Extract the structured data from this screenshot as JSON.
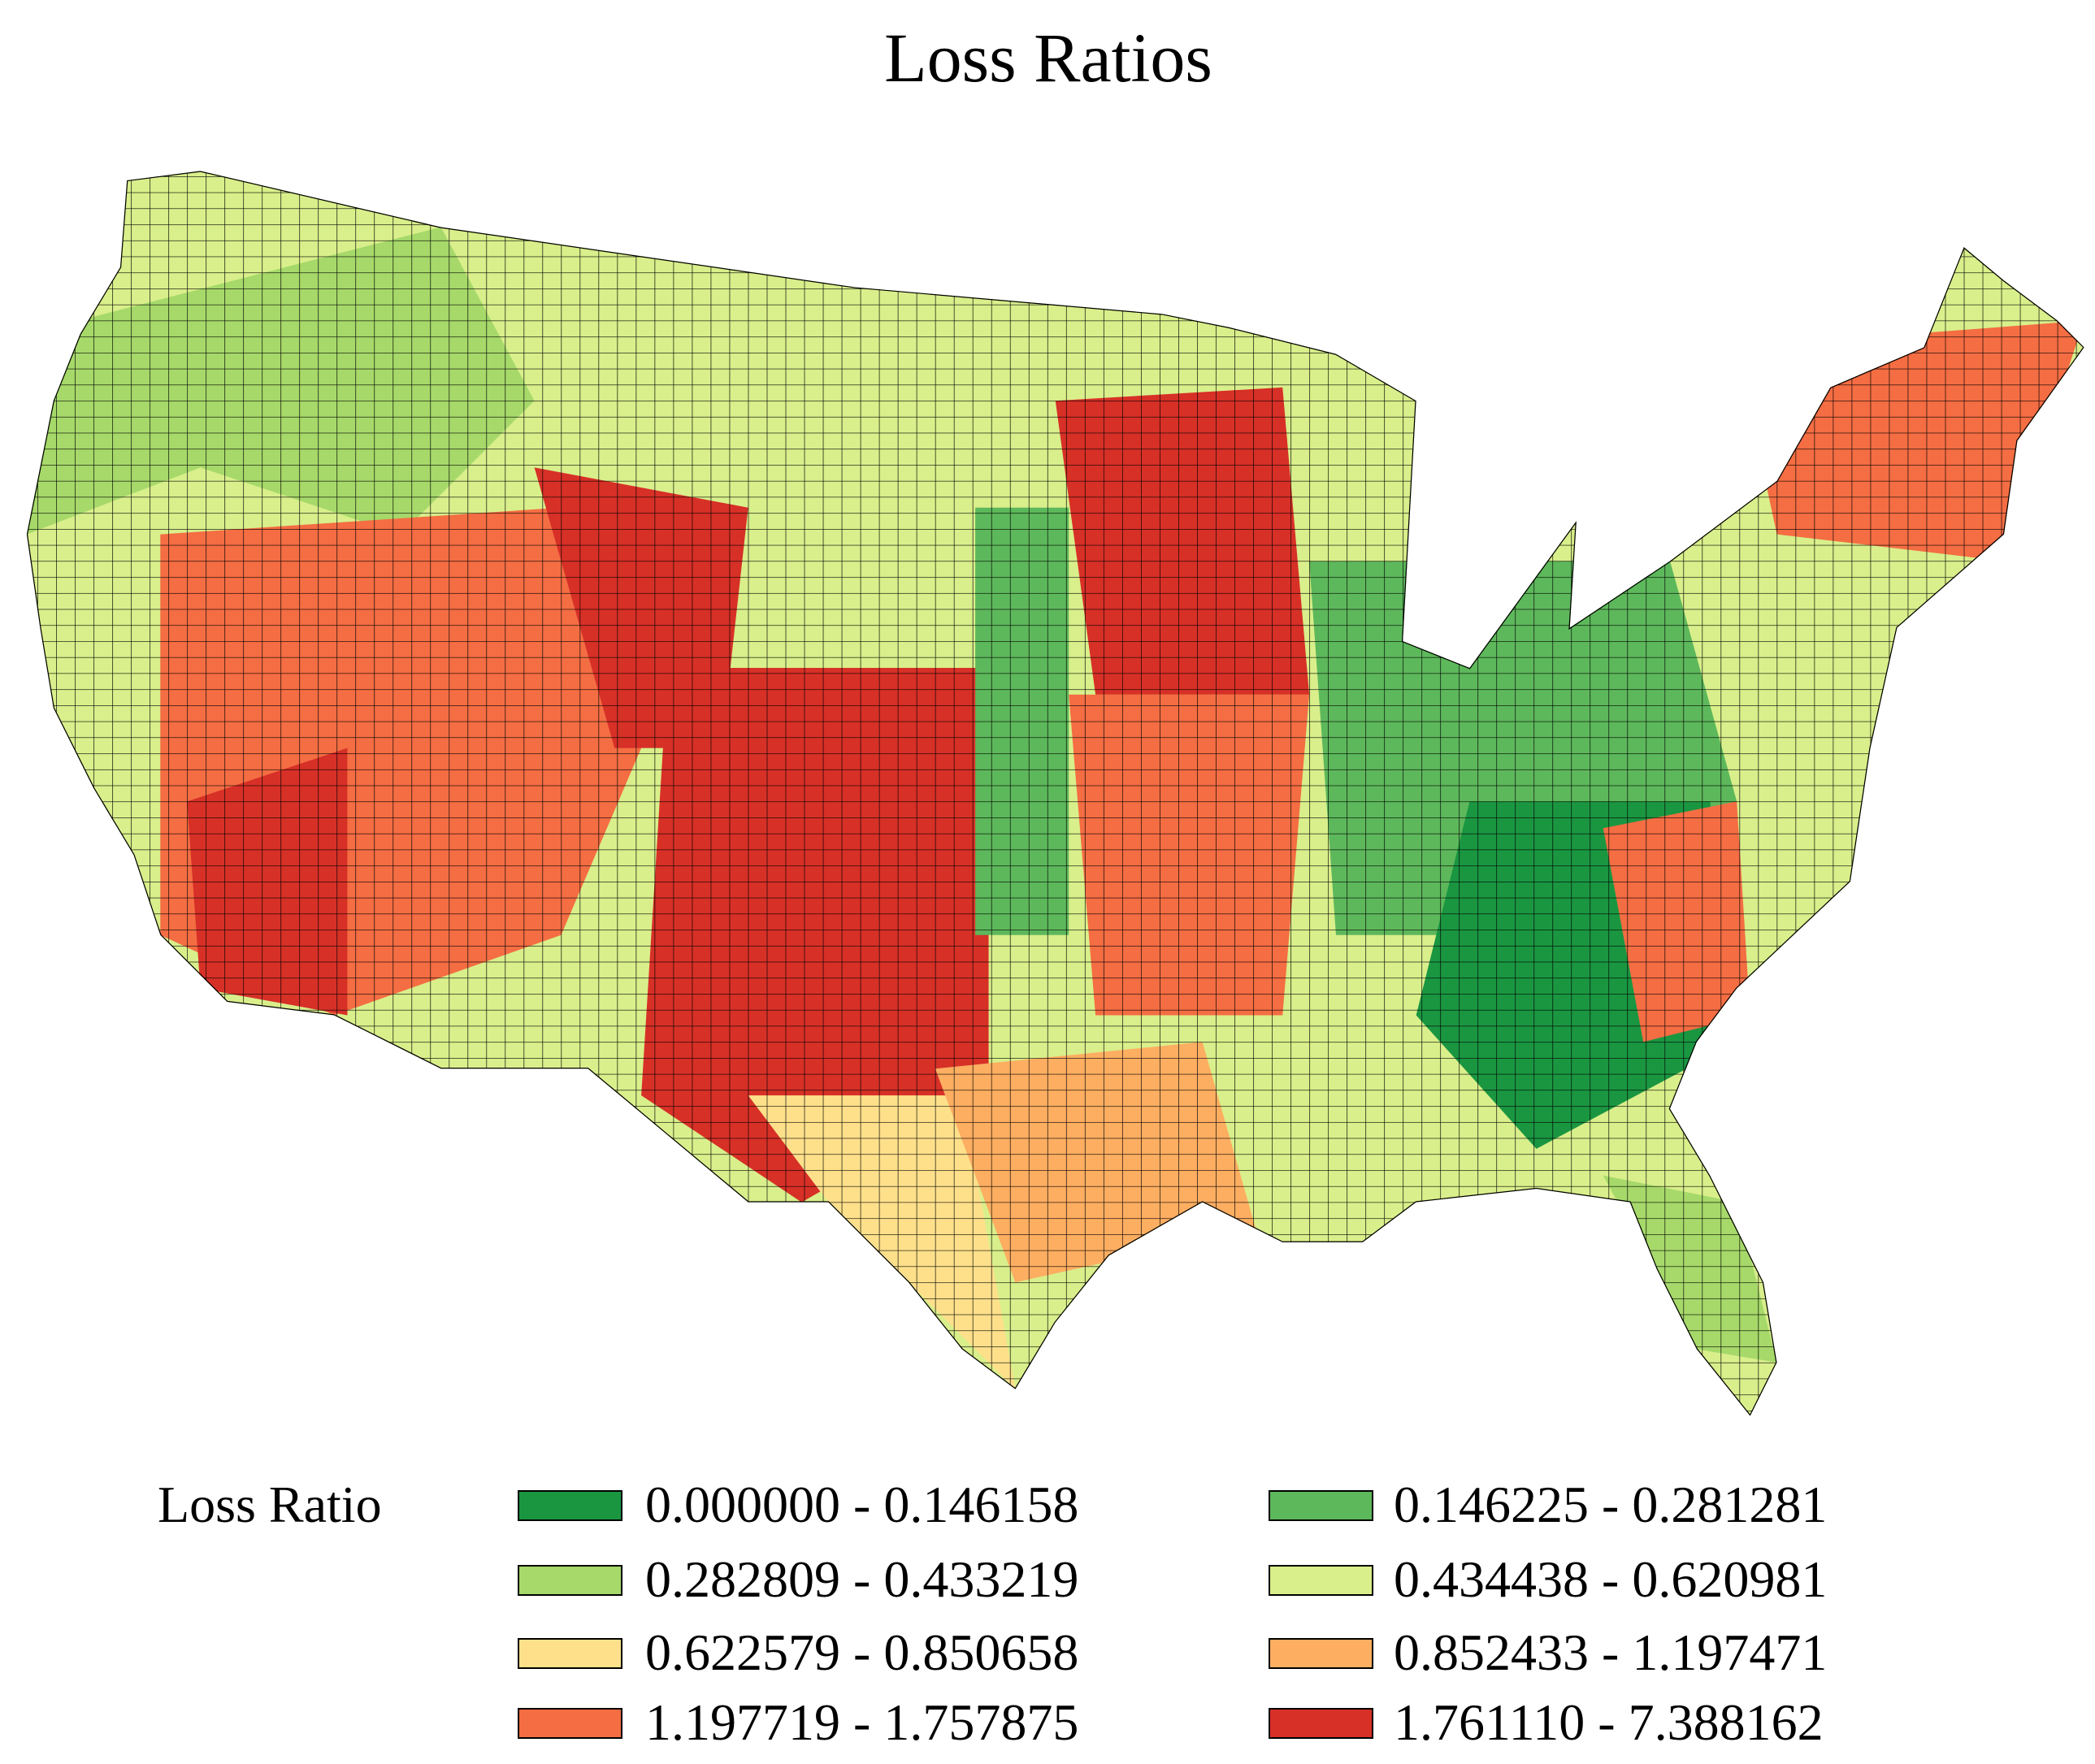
{
  "title": "Loss Ratios",
  "legend": {
    "title": "Loss Ratio",
    "classes": [
      {
        "label": "0.000000 - 0.146158",
        "color": "#1a9641"
      },
      {
        "label": "0.146225 - 0.281281",
        "color": "#5db85b"
      },
      {
        "label": "0.282809 - 0.433219",
        "color": "#a6d96a"
      },
      {
        "label": "0.434438 - 0.620981",
        "color": "#d9ef8b"
      },
      {
        "label": "0.622579 - 0.850658",
        "color": "#fee08b"
      },
      {
        "label": "0.852433 - 1.197471",
        "color": "#fdae61"
      },
      {
        "label": "1.197719 - 1.757875",
        "color": "#f46d43"
      },
      {
        "label": "1.761110 - 7.388162",
        "color": "#d73027"
      }
    ]
  }
}
